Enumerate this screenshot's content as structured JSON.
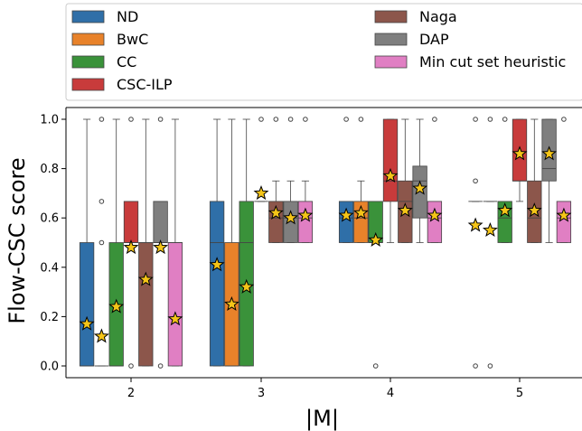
{
  "chart_data": {
    "type": "box",
    "xlabel": "|M|",
    "ylabel": "Flow-CSC score",
    "ylim": [
      -0.03,
      1.05
    ],
    "yticks": [
      "0.0",
      "0.2",
      "0.4",
      "0.6",
      "0.8",
      "1.0"
    ],
    "categories": [
      "2",
      "3",
      "4",
      "5"
    ],
    "legend_position": "top",
    "mean_marker": "gold star",
    "series": [
      {
        "name": "ND",
        "color": "#2f6fa8",
        "boxes": [
          {
            "q1": 0,
            "median": 0,
            "q3": 0.5,
            "whisker_low": 0,
            "whisker_high": 1.0,
            "outliers": [],
            "mean": 0.17
          },
          {
            "q1": 0,
            "median": 0.5,
            "q3": 0.667,
            "whisker_low": 0,
            "whisker_high": 1.0,
            "outliers": [],
            "mean": 0.41
          },
          {
            "q1": 0.5,
            "median": 0.6,
            "q3": 0.667,
            "whisker_low": 0.5,
            "whisker_high": 0.667,
            "outliers": [
              1.0
            ],
            "mean": 0.61
          },
          {
            "q1": 0.667,
            "median": 0.667,
            "q3": 0.667,
            "whisker_low": 0.667,
            "whisker_high": 0.667,
            "outliers": [
              0,
              0.75,
              1.0
            ],
            "mean": 0.57
          }
        ]
      },
      {
        "name": "BwC",
        "color": "#e8822a",
        "boxes": [
          {
            "q1": 0,
            "median": 0,
            "q3": 0,
            "whisker_low": 0,
            "whisker_high": 0,
            "outliers": [
              0.5,
              0.667,
              1.0
            ],
            "mean": 0.12
          },
          {
            "q1": 0,
            "median": 0,
            "q3": 0.5,
            "whisker_low": 0,
            "whisker_high": 1.0,
            "outliers": [],
            "mean": 0.25
          },
          {
            "q1": 0.5,
            "median": 0.6,
            "q3": 0.667,
            "whisker_low": 0.5,
            "whisker_high": 0.75,
            "outliers": [
              1.0
            ],
            "mean": 0.62
          },
          {
            "q1": 0.667,
            "median": 0.667,
            "q3": 0.667,
            "whisker_low": 0.667,
            "whisker_high": 0.667,
            "outliers": [
              0,
              1.0
            ],
            "mean": 0.55
          }
        ]
      },
      {
        "name": "CC",
        "color": "#3a923a",
        "boxes": [
          {
            "q1": 0,
            "median": 0,
            "q3": 0.5,
            "whisker_low": 0,
            "whisker_high": 1.0,
            "outliers": [],
            "mean": 0.24
          },
          {
            "q1": 0,
            "median": 0.5,
            "q3": 0.667,
            "whisker_low": 0,
            "whisker_high": 1.0,
            "outliers": [],
            "mean": 0.32
          },
          {
            "q1": 0.5,
            "median": 0.5,
            "q3": 0.667,
            "whisker_low": 0.5,
            "whisker_high": 0.667,
            "outliers": [
              0
            ],
            "mean": 0.51
          },
          {
            "q1": 0.5,
            "median": 0.6,
            "q3": 0.667,
            "whisker_low": 0.5,
            "whisker_high": 0.667,
            "outliers": [
              1.0
            ],
            "mean": 0.63
          }
        ]
      },
      {
        "name": "CSC-ILP",
        "color": "#c83b3b",
        "boxes": [
          {
            "q1": 0.5,
            "median": 0.5,
            "q3": 0.667,
            "whisker_low": 0.5,
            "whisker_high": 0.667,
            "outliers": [
              0,
              1.0
            ],
            "mean": 0.48
          },
          {
            "q1": 0.667,
            "median": 0.667,
            "q3": 0.667,
            "whisker_low": 0.667,
            "whisker_high": 0.667,
            "outliers": [
              1.0
            ],
            "mean": 0.7
          },
          {
            "q1": 0.667,
            "median": 0.75,
            "q3": 1.0,
            "whisker_low": 0.5,
            "whisker_high": 1.0,
            "outliers": [],
            "mean": 0.77
          },
          {
            "q1": 0.75,
            "median": 0.75,
            "q3": 1.0,
            "whisker_low": 0.667,
            "whisker_high": 1.0,
            "outliers": [],
            "mean": 0.86
          }
        ]
      },
      {
        "name": "Naga",
        "color": "#8c564b",
        "boxes": [
          {
            "q1": 0,
            "median": 0.5,
            "q3": 0.5,
            "whisker_low": 0,
            "whisker_high": 1.0,
            "outliers": [],
            "mean": 0.35
          },
          {
            "q1": 0.5,
            "median": 0.6,
            "q3": 0.667,
            "whisker_low": 0.5,
            "whisker_high": 0.75,
            "outliers": [
              1.0
            ],
            "mean": 0.62
          },
          {
            "q1": 0.5,
            "median": 0.667,
            "q3": 0.75,
            "whisker_low": 0.5,
            "whisker_high": 1.0,
            "outliers": [],
            "mean": 0.63
          },
          {
            "q1": 0.5,
            "median": 0.6,
            "q3": 0.75,
            "whisker_low": 0.5,
            "whisker_high": 1.0,
            "outliers": [],
            "mean": 0.63
          }
        ]
      },
      {
        "name": "DAP",
        "color": "#7f7f7f",
        "boxes": [
          {
            "q1": 0.5,
            "median": 0.5,
            "q3": 0.667,
            "whisker_low": 0.5,
            "whisker_high": 0.667,
            "outliers": [
              0,
              1.0
            ],
            "mean": 0.48
          },
          {
            "q1": 0.5,
            "median": 0.6,
            "q3": 0.667,
            "whisker_low": 0.5,
            "whisker_high": 0.75,
            "outliers": [
              1.0
            ],
            "mean": 0.6
          },
          {
            "q1": 0.6,
            "median": 0.75,
            "q3": 0.81,
            "whisker_low": 0.5,
            "whisker_high": 1.0,
            "outliers": [],
            "mean": 0.72
          },
          {
            "q1": 0.75,
            "median": 0.8,
            "q3": 1.0,
            "whisker_low": 0.5,
            "whisker_high": 1.0,
            "outliers": [],
            "mean": 0.86
          }
        ]
      },
      {
        "name": "Min cut set heuristic",
        "color": "#e07fc3",
        "boxes": [
          {
            "q1": 0,
            "median": 0.5,
            "q3": 0.5,
            "whisker_low": 0,
            "whisker_high": 1.0,
            "outliers": [],
            "mean": 0.19
          },
          {
            "q1": 0.5,
            "median": 0.6,
            "q3": 0.667,
            "whisker_low": 0.5,
            "whisker_high": 0.75,
            "outliers": [
              1.0
            ],
            "mean": 0.61
          },
          {
            "q1": 0.5,
            "median": 0.6,
            "q3": 0.667,
            "whisker_low": 0.5,
            "whisker_high": 0.667,
            "outliers": [
              1.0
            ],
            "mean": 0.61
          },
          {
            "q1": 0.5,
            "median": 0.6,
            "q3": 0.667,
            "whisker_low": 0.5,
            "whisker_high": 0.667,
            "outliers": [
              1.0
            ],
            "mean": 0.61
          }
        ]
      }
    ]
  }
}
